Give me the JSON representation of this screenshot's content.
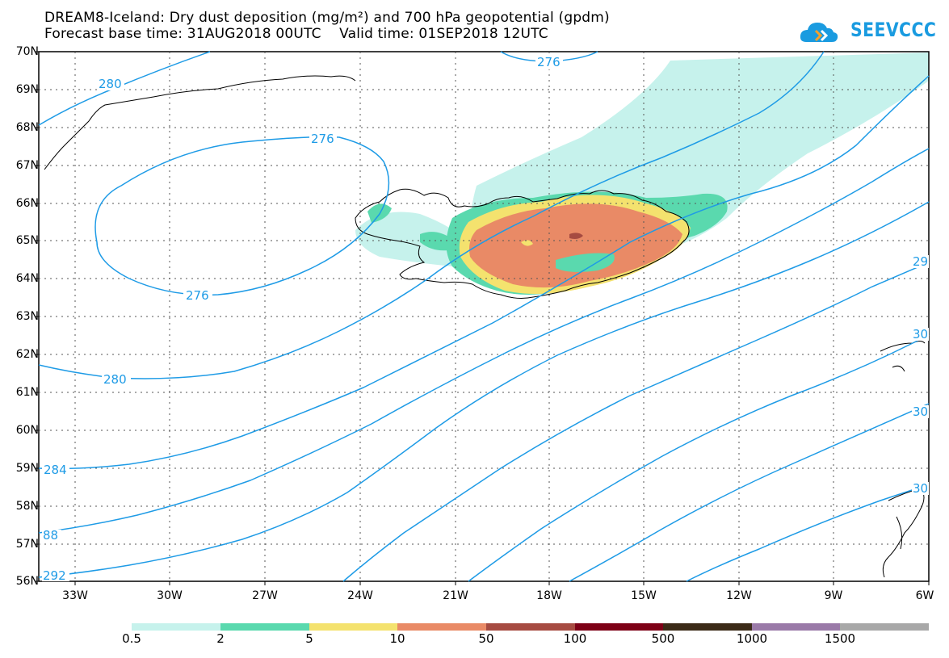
{
  "title": {
    "line1": "DREAM8-Iceland: Dry dust deposition (mg/m²) and 700 hPa geopotential (gpdm)",
    "line2": "Forecast base time: 31AUG2018 00UTC    Valid time: 01SEP2018 12UTC"
  },
  "logo": {
    "text": "SEEVCCC",
    "icon": "cloud-logo-icon",
    "color": "#1a9be0"
  },
  "axes": {
    "lat_labels": [
      "70N",
      "69N",
      "68N",
      "67N",
      "66N",
      "65N",
      "64N",
      "63N",
      "62N",
      "61N",
      "60N",
      "59N",
      "58N",
      "57N",
      "56N"
    ],
    "lon_labels": [
      "33W",
      "30W",
      "27W",
      "24W",
      "21W",
      "18W",
      "15W",
      "12W",
      "9W",
      "6W"
    ]
  },
  "contour_color": "#1e9be6",
  "contour_labels": [
    {
      "text": "280"
    },
    {
      "text": "276"
    },
    {
      "text": "276"
    },
    {
      "text": "276"
    },
    {
      "text": "280"
    },
    {
      "text": "284"
    },
    {
      "text": "88"
    },
    {
      "text": "292"
    },
    {
      "text": "29"
    },
    {
      "text": "30"
    },
    {
      "text": "30"
    },
    {
      "text": "30"
    }
  ],
  "legend": {
    "colors": [
      "#c6f2ec",
      "#5ad9ae",
      "#f4e26e",
      "#e98a66",
      "#a64b41",
      "#7d0016",
      "#3b2a17",
      "#9a7aa8",
      "#a8a8a8"
    ],
    "labels": [
      "0.5",
      "2",
      "5",
      "10",
      "50",
      "100",
      "500",
      "1000",
      "1500"
    ]
  }
}
